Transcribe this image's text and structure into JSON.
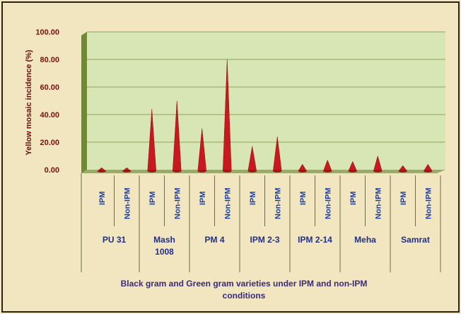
{
  "chart_data": {
    "type": "bar",
    "title": "",
    "ylabel": "Yellow mosaic incidence (%)",
    "xlabel_lines": [
      "Black gram and Green gram varieties under IPM and non-IPM",
      "conditions"
    ],
    "ylim": [
      0,
      100
    ],
    "yticks": [
      "0.00",
      "20.00",
      "40.00",
      "60.00",
      "80.00",
      "100.00"
    ],
    "grid": true,
    "legend": "none",
    "bar_color": "#c8191e",
    "plot_color": "#d8e5b4",
    "varieties": [
      {
        "name": [
          "PU 31"
        ],
        "conditions": [
          "IPM",
          "Non-IPM"
        ],
        "values": [
          1.5,
          1.5
        ]
      },
      {
        "name": [
          "Mash",
          "1008"
        ],
        "conditions": [
          "IPM",
          "Non-IPM"
        ],
        "values": [
          44,
          50
        ]
      },
      {
        "name": [
          "PM 4"
        ],
        "conditions": [
          "IPM",
          "Non-IPM"
        ],
        "values": [
          30,
          80
        ]
      },
      {
        "name": [
          "IPM 2-3"
        ],
        "conditions": [
          "IPM",
          "Non-IPM"
        ],
        "values": [
          17,
          24
        ]
      },
      {
        "name": [
          "IPM 2-14"
        ],
        "conditions": [
          "IPM",
          "Non-IPM"
        ],
        "values": [
          4,
          7
        ]
      },
      {
        "name": [
          "Meha"
        ],
        "conditions": [
          "IPM",
          "Non-IPM"
        ],
        "values": [
          6,
          10
        ]
      },
      {
        "name": [
          "Samrat"
        ],
        "conditions": [
          "IPM",
          "Non-IPM"
        ],
        "values": [
          3,
          4
        ]
      }
    ]
  }
}
